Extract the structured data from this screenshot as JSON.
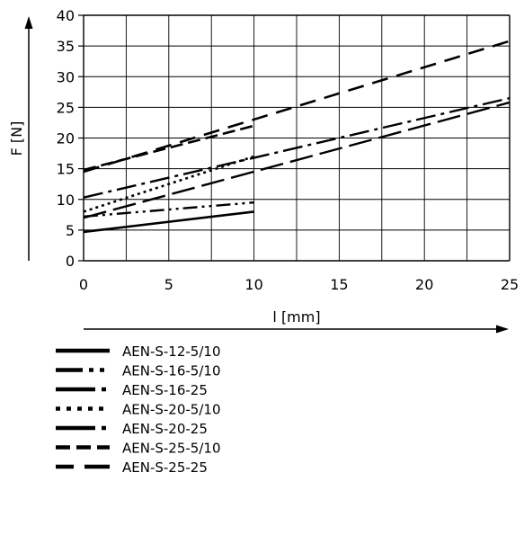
{
  "chart_data": {
    "type": "line",
    "title": "",
    "xlabel": "l [mm]",
    "ylabel": "F [N]",
    "xlim": [
      0,
      25
    ],
    "ylim": [
      0,
      40
    ],
    "x_ticks": [
      0,
      5,
      10,
      15,
      20,
      25
    ],
    "y_ticks": [
      0,
      5,
      10,
      15,
      20,
      25,
      30,
      35,
      40
    ],
    "grid": true,
    "legend_position": "below",
    "series": [
      {
        "name": "AEN-S-12-5/10",
        "style": "solid",
        "x": [
          0,
          10
        ],
        "y": [
          4.7,
          8.0
        ]
      },
      {
        "name": "AEN-S-16-5/10",
        "style": "dash-dot-dot",
        "x": [
          0,
          10
        ],
        "y": [
          7.2,
          9.5
        ]
      },
      {
        "name": "AEN-S-16-25",
        "style": "long-dash-dot",
        "x": [
          0,
          25
        ],
        "y": [
          10.3,
          26.5
        ]
      },
      {
        "name": "AEN-S-20-5/10",
        "style": "dotted",
        "x": [
          0,
          10
        ],
        "y": [
          8.0,
          17.0
        ]
      },
      {
        "name": "AEN-S-20-25",
        "style": "long-dash",
        "x": [
          0,
          25
        ],
        "y": [
          7.0,
          25.8
        ]
      },
      {
        "name": "AEN-S-25-5/10",
        "style": "dashed",
        "x": [
          0,
          10
        ],
        "y": [
          14.8,
          22.0
        ]
      },
      {
        "name": "AEN-S-25-25",
        "style": "dashed-wide",
        "x": [
          0,
          25
        ],
        "y": [
          14.5,
          35.8
        ]
      }
    ]
  }
}
